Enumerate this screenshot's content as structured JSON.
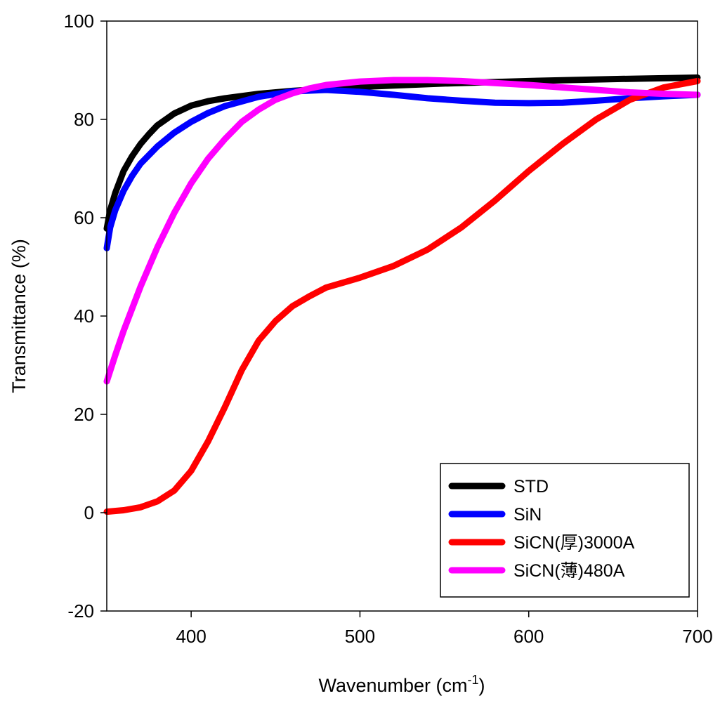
{
  "chart_data": {
    "type": "line",
    "xlabel": "Wavenumber (cm",
    "xlabel_sup": "-1",
    "xlabel_end": ")",
    "ylabel": "Transmittance (%)",
    "xlim": [
      350,
      700
    ],
    "ylim": [
      -20,
      100
    ],
    "xticks": [
      400,
      500,
      600,
      700
    ],
    "yticks": [
      -20,
      0,
      20,
      40,
      60,
      80,
      100
    ],
    "grid": false,
    "legend_position": "bottom-right",
    "series": [
      {
        "name": "STD",
        "color": "#000000",
        "points": [
          [
            350,
            57.8
          ],
          [
            352,
            61.5
          ],
          [
            355,
            65
          ],
          [
            360,
            69.5
          ],
          [
            365,
            72.5
          ],
          [
            370,
            75
          ],
          [
            375,
            77
          ],
          [
            380,
            78.8
          ],
          [
            390,
            81.2
          ],
          [
            400,
            82.8
          ],
          [
            410,
            83.7
          ],
          [
            420,
            84.3
          ],
          [
            440,
            85.2
          ],
          [
            460,
            85.8
          ],
          [
            480,
            86.2
          ],
          [
            500,
            86.6
          ],
          [
            520,
            86.9
          ],
          [
            550,
            87.3
          ],
          [
            600,
            87.8
          ],
          [
            650,
            88.2
          ],
          [
            700,
            88.5
          ]
        ]
      },
      {
        "name": "SiN",
        "color": "#0000ff",
        "points": [
          [
            350,
            53.8
          ],
          [
            352,
            58
          ],
          [
            355,
            61.5
          ],
          [
            360,
            65.5
          ],
          [
            365,
            68.5
          ],
          [
            370,
            71
          ],
          [
            380,
            74.5
          ],
          [
            390,
            77.3
          ],
          [
            400,
            79.5
          ],
          [
            410,
            81.3
          ],
          [
            420,
            82.7
          ],
          [
            440,
            84.6
          ],
          [
            460,
            85.7
          ],
          [
            480,
            86
          ],
          [
            500,
            85.6
          ],
          [
            520,
            85
          ],
          [
            540,
            84.3
          ],
          [
            560,
            83.8
          ],
          [
            580,
            83.4
          ],
          [
            600,
            83.3
          ],
          [
            620,
            83.4
          ],
          [
            640,
            83.8
          ],
          [
            660,
            84.3
          ],
          [
            680,
            84.7
          ],
          [
            700,
            85
          ]
        ]
      },
      {
        "name": "SiCN(厚)3000A",
        "color": "#ff0000",
        "points": [
          [
            350,
            0.2
          ],
          [
            360,
            0.5
          ],
          [
            370,
            1.1
          ],
          [
            380,
            2.3
          ],
          [
            390,
            4.5
          ],
          [
            400,
            8.5
          ],
          [
            410,
            14.5
          ],
          [
            420,
            21.5
          ],
          [
            430,
            29
          ],
          [
            440,
            35
          ],
          [
            450,
            39
          ],
          [
            460,
            42
          ],
          [
            470,
            44
          ],
          [
            480,
            45.8
          ],
          [
            500,
            47.8
          ],
          [
            520,
            50.2
          ],
          [
            540,
            53.5
          ],
          [
            560,
            58
          ],
          [
            580,
            63.5
          ],
          [
            600,
            69.5
          ],
          [
            620,
            75
          ],
          [
            640,
            80
          ],
          [
            660,
            84
          ],
          [
            680,
            86.5
          ],
          [
            700,
            87.8
          ]
        ]
      },
      {
        "name": "SiCN(薄)480A",
        "color": "#ff00ff",
        "points": [
          [
            350,
            26.7
          ],
          [
            355,
            32
          ],
          [
            360,
            37
          ],
          [
            370,
            46
          ],
          [
            380,
            54
          ],
          [
            390,
            61
          ],
          [
            400,
            67
          ],
          [
            410,
            72
          ],
          [
            420,
            76
          ],
          [
            430,
            79.5
          ],
          [
            440,
            82
          ],
          [
            450,
            84
          ],
          [
            460,
            85.3
          ],
          [
            470,
            86.3
          ],
          [
            480,
            87
          ],
          [
            500,
            87.7
          ],
          [
            520,
            88
          ],
          [
            540,
            88
          ],
          [
            560,
            87.8
          ],
          [
            580,
            87.4
          ],
          [
            600,
            87
          ],
          [
            620,
            86.5
          ],
          [
            640,
            86
          ],
          [
            660,
            85.5
          ],
          [
            680,
            85.2
          ],
          [
            700,
            85
          ]
        ]
      }
    ]
  }
}
